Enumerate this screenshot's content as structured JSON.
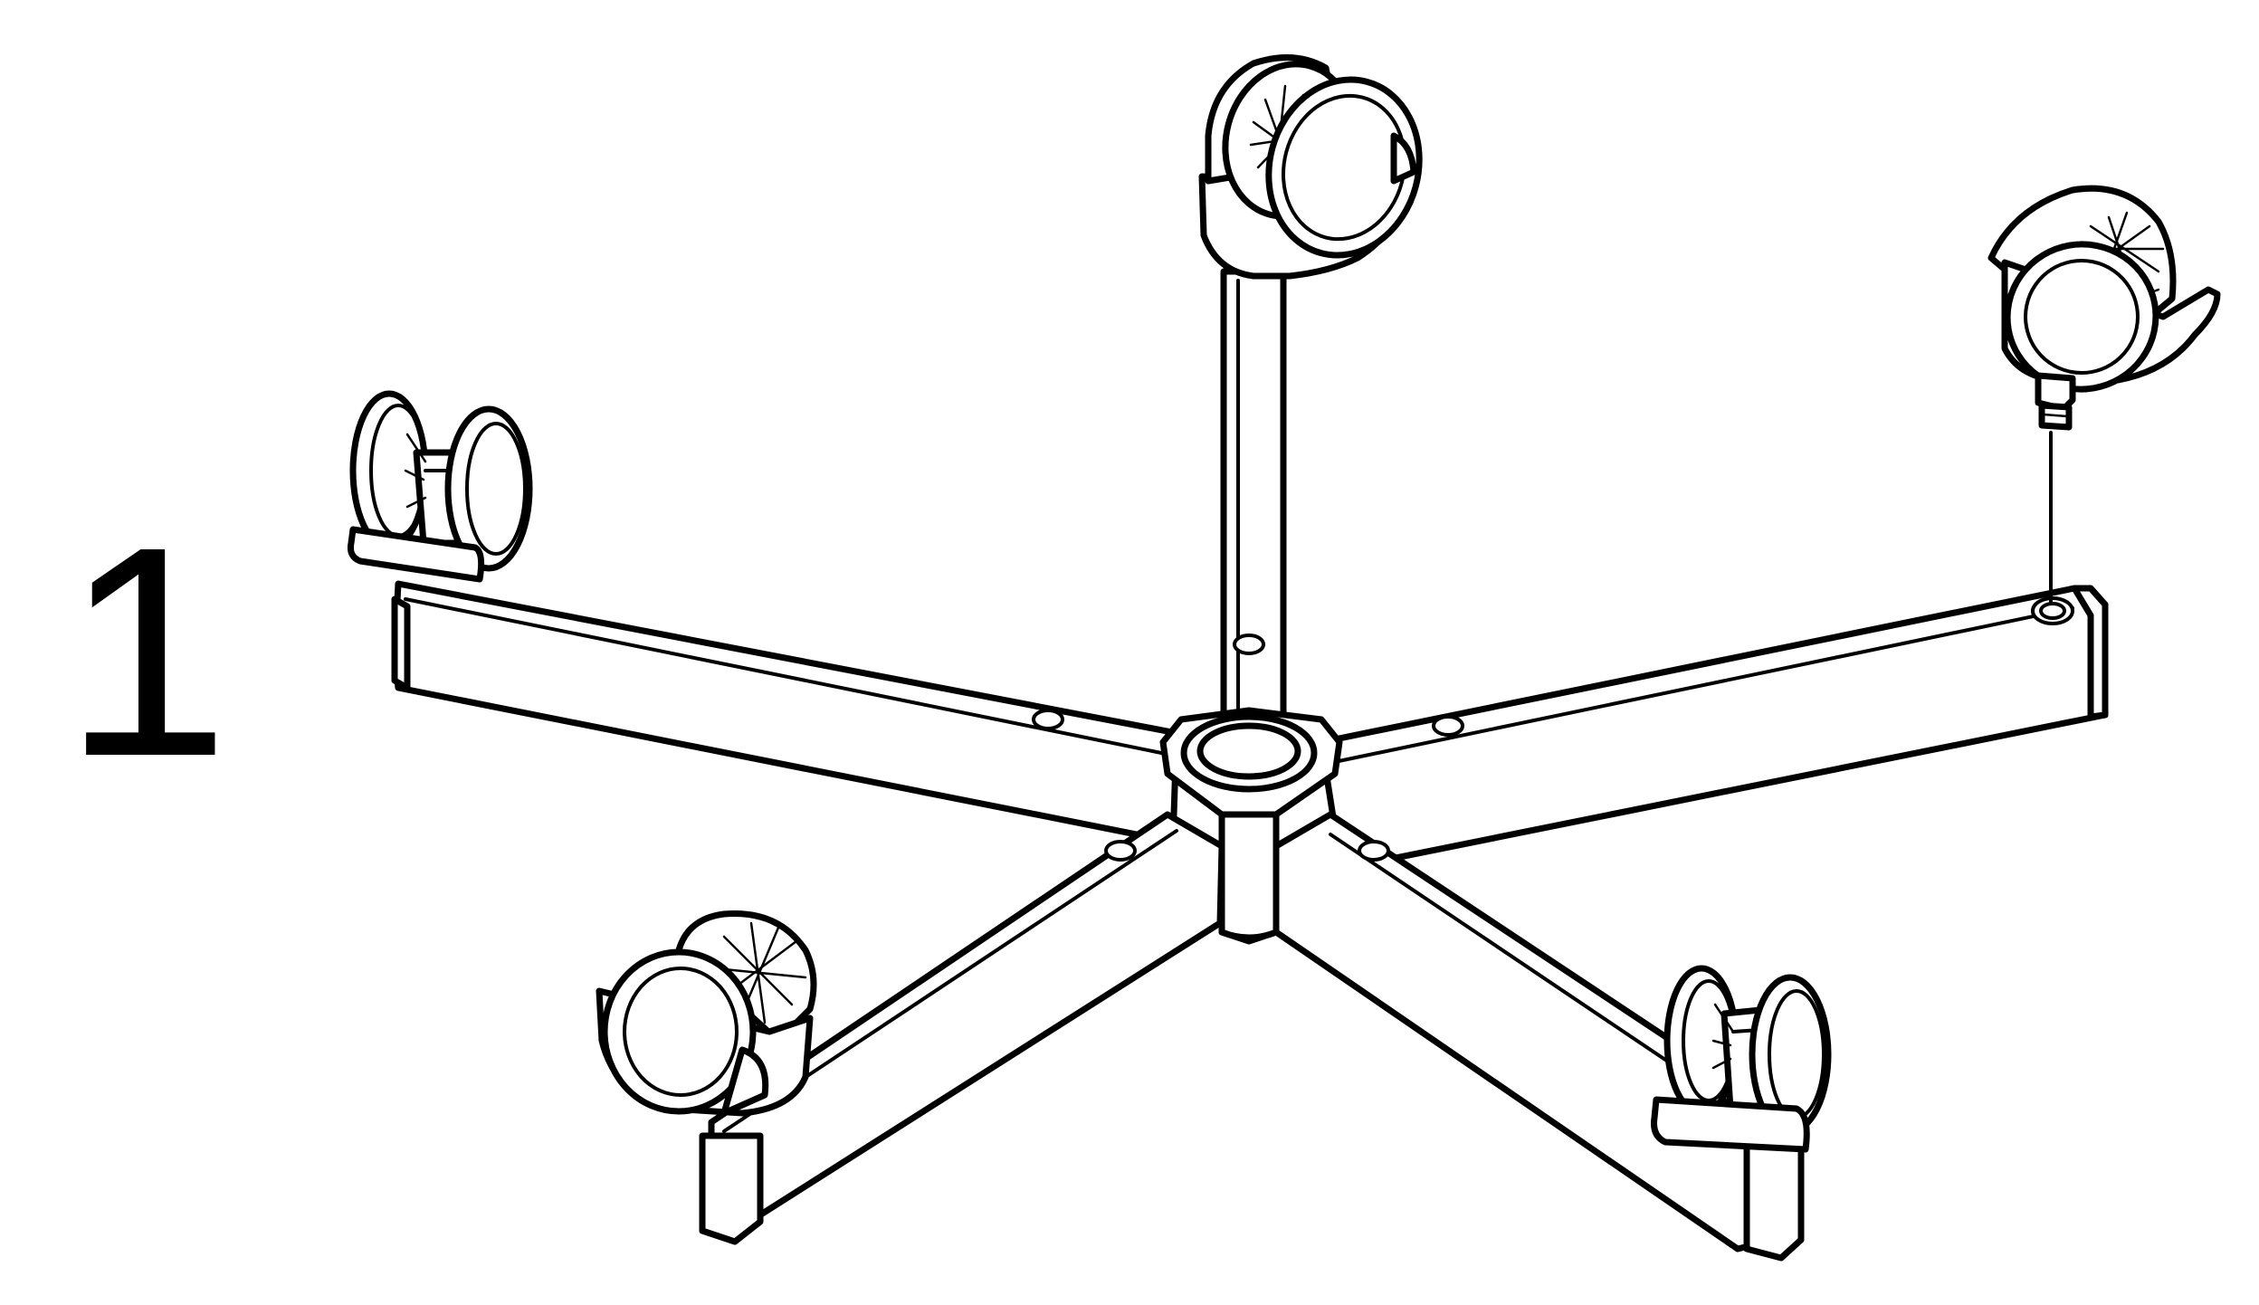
{
  "step": {
    "number": "1"
  },
  "figure": {
    "colors": {
      "line": "#000000",
      "fill": "#ffffff"
    },
    "parts": [
      "star-base",
      "hub",
      "caster-wheel",
      "caster-wheel",
      "caster-wheel",
      "caster-wheel",
      "caster-wheel-being-inserted"
    ],
    "caster_count": 5,
    "casters_installed": 4
  }
}
